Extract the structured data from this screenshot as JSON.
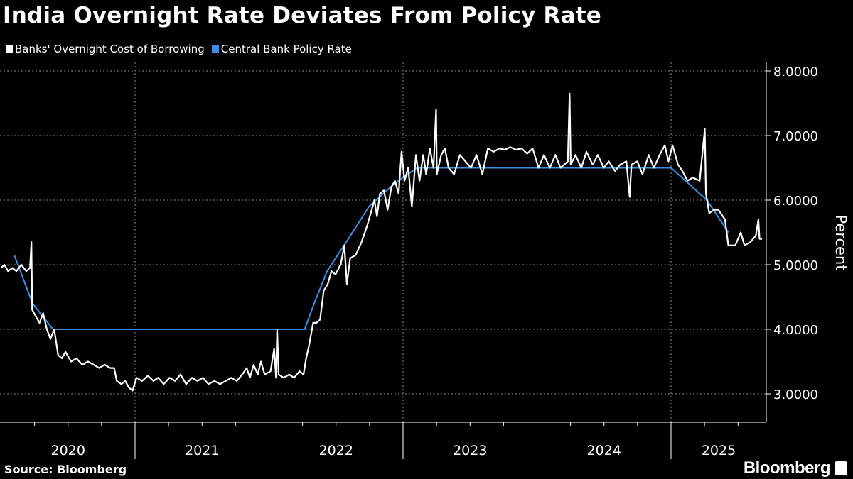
{
  "title": "India Overnight Rate Deviates From Policy Rate",
  "source": "Source: Bloomberg",
  "brand": "Bloomberg",
  "chart_data": {
    "type": "line",
    "title": "India Overnight Rate Deviates From Policy Rate",
    "xlabel": "",
    "ylabel": "Percent",
    "ylim": [
      2.6,
      8.15
    ],
    "xlim": [
      "2020-01-01",
      "2025-09-20"
    ],
    "y_ticks": [
      "3.0000",
      "4.0000",
      "5.0000",
      "6.0000",
      "7.0000",
      "8.0000"
    ],
    "x_tick_labels": [
      "2020",
      "2021",
      "2022",
      "2023",
      "2024",
      "2025"
    ],
    "grid": true,
    "legend_position": "top-left",
    "series": [
      {
        "name": "Banks' Overnight Cost of Borrowing",
        "color": "#ffffff",
        "points": [
          [
            "2020-01-01",
            4.95
          ],
          [
            "2020-01-10",
            5.0
          ],
          [
            "2020-01-20",
            4.9
          ],
          [
            "2020-02-01",
            4.95
          ],
          [
            "2020-02-12",
            4.9
          ],
          [
            "2020-02-25",
            5.0
          ],
          [
            "2020-03-10",
            4.9
          ],
          [
            "2020-03-20",
            4.95
          ],
          [
            "2020-03-24",
            5.35
          ],
          [
            "2020-03-26",
            4.3
          ],
          [
            "2020-04-05",
            4.2
          ],
          [
            "2020-04-15",
            4.1
          ],
          [
            "2020-04-25",
            4.25
          ],
          [
            "2020-05-05",
            4.0
          ],
          [
            "2020-05-15",
            3.85
          ],
          [
            "2020-05-25",
            4.0
          ],
          [
            "2020-06-05",
            3.6
          ],
          [
            "2020-06-15",
            3.55
          ],
          [
            "2020-06-25",
            3.65
          ],
          [
            "2020-07-10",
            3.5
          ],
          [
            "2020-07-25",
            3.55
          ],
          [
            "2020-08-10",
            3.45
          ],
          [
            "2020-08-25",
            3.5
          ],
          [
            "2020-09-10",
            3.45
          ],
          [
            "2020-09-25",
            3.4
          ],
          [
            "2020-10-10",
            3.45
          ],
          [
            "2020-10-25",
            3.4
          ],
          [
            "2020-11-05",
            3.4
          ],
          [
            "2020-11-12",
            3.2
          ],
          [
            "2020-11-25",
            3.15
          ],
          [
            "2020-12-05",
            3.2
          ],
          [
            "2020-12-15",
            3.1
          ],
          [
            "2020-12-25",
            3.05
          ],
          [
            "2021-01-05",
            3.25
          ],
          [
            "2021-01-20",
            3.2
          ],
          [
            "2021-02-05",
            3.28
          ],
          [
            "2021-02-20",
            3.2
          ],
          [
            "2021-03-05",
            3.25
          ],
          [
            "2021-03-20",
            3.15
          ],
          [
            "2021-04-05",
            3.25
          ],
          [
            "2021-04-20",
            3.2
          ],
          [
            "2021-05-05",
            3.3
          ],
          [
            "2021-05-20",
            3.15
          ],
          [
            "2021-06-05",
            3.25
          ],
          [
            "2021-06-20",
            3.2
          ],
          [
            "2021-07-05",
            3.25
          ],
          [
            "2021-07-20",
            3.15
          ],
          [
            "2021-08-05",
            3.2
          ],
          [
            "2021-08-20",
            3.15
          ],
          [
            "2021-09-05",
            3.2
          ],
          [
            "2021-09-20",
            3.25
          ],
          [
            "2021-10-05",
            3.2
          ],
          [
            "2021-10-20",
            3.3
          ],
          [
            "2021-11-01",
            3.4
          ],
          [
            "2021-11-10",
            3.25
          ],
          [
            "2021-11-20",
            3.45
          ],
          [
            "2021-12-01",
            3.3
          ],
          [
            "2021-12-10",
            3.5
          ],
          [
            "2021-12-20",
            3.3
          ],
          [
            "2022-01-05",
            3.35
          ],
          [
            "2022-01-15",
            3.7
          ],
          [
            "2022-01-20",
            3.25
          ],
          [
            "2022-01-23",
            4.0
          ],
          [
            "2022-01-27",
            3.3
          ],
          [
            "2022-02-10",
            3.25
          ],
          [
            "2022-02-25",
            3.3
          ],
          [
            "2022-03-10",
            3.25
          ],
          [
            "2022-03-25",
            3.35
          ],
          [
            "2022-04-05",
            3.3
          ],
          [
            "2022-04-12",
            3.55
          ],
          [
            "2022-04-20",
            3.75
          ],
          [
            "2022-05-01",
            4.1
          ],
          [
            "2022-05-10",
            4.1
          ],
          [
            "2022-05-20",
            4.15
          ],
          [
            "2022-05-30",
            4.6
          ],
          [
            "2022-06-10",
            4.7
          ],
          [
            "2022-06-20",
            4.9
          ],
          [
            "2022-07-01",
            4.85
          ],
          [
            "2022-07-15",
            5.0
          ],
          [
            "2022-07-25",
            5.3
          ],
          [
            "2022-08-01",
            4.7
          ],
          [
            "2022-08-10",
            5.1
          ],
          [
            "2022-08-25",
            5.15
          ],
          [
            "2022-09-10",
            5.35
          ],
          [
            "2022-09-25",
            5.6
          ],
          [
            "2022-10-05",
            5.8
          ],
          [
            "2022-10-15",
            6.0
          ],
          [
            "2022-10-22",
            5.75
          ],
          [
            "2022-10-30",
            6.1
          ],
          [
            "2022-11-10",
            6.15
          ],
          [
            "2022-11-20",
            5.85
          ],
          [
            "2022-11-30",
            6.2
          ],
          [
            "2022-12-10",
            6.3
          ],
          [
            "2022-12-20",
            6.1
          ],
          [
            "2022-12-28",
            6.75
          ],
          [
            "2023-01-05",
            6.3
          ],
          [
            "2023-01-15",
            6.5
          ],
          [
            "2023-01-25",
            5.9
          ],
          [
            "2023-02-05",
            6.7
          ],
          [
            "2023-02-15",
            6.3
          ],
          [
            "2023-02-25",
            6.7
          ],
          [
            "2023-03-05",
            6.4
          ],
          [
            "2023-03-15",
            6.8
          ],
          [
            "2023-03-25",
            6.5
          ],
          [
            "2023-04-01",
            7.4
          ],
          [
            "2023-04-03",
            6.4
          ],
          [
            "2023-04-15",
            6.7
          ],
          [
            "2023-04-25",
            6.8
          ],
          [
            "2023-05-05",
            6.5
          ],
          [
            "2023-05-20",
            6.4
          ],
          [
            "2023-06-05",
            6.7
          ],
          [
            "2023-06-20",
            6.6
          ],
          [
            "2023-07-05",
            6.5
          ],
          [
            "2023-07-20",
            6.7
          ],
          [
            "2023-08-05",
            6.4
          ],
          [
            "2023-08-20",
            6.8
          ],
          [
            "2023-09-05",
            6.75
          ],
          [
            "2023-09-20",
            6.8
          ],
          [
            "2023-10-05",
            6.78
          ],
          [
            "2023-10-20",
            6.82
          ],
          [
            "2023-11-05",
            6.78
          ],
          [
            "2023-11-20",
            6.8
          ],
          [
            "2023-12-05",
            6.72
          ],
          [
            "2023-12-20",
            6.8
          ],
          [
            "2024-01-05",
            6.5
          ],
          [
            "2024-01-20",
            6.7
          ],
          [
            "2024-02-05",
            6.5
          ],
          [
            "2024-02-20",
            6.7
          ],
          [
            "2024-03-05",
            6.5
          ],
          [
            "2024-03-25",
            6.6
          ],
          [
            "2024-03-30",
            7.65
          ],
          [
            "2024-04-02",
            6.55
          ],
          [
            "2024-04-15",
            6.7
          ],
          [
            "2024-05-01",
            6.5
          ],
          [
            "2024-05-15",
            6.75
          ],
          [
            "2024-06-01",
            6.55
          ],
          [
            "2024-06-15",
            6.7
          ],
          [
            "2024-07-01",
            6.5
          ],
          [
            "2024-07-15",
            6.6
          ],
          [
            "2024-08-01",
            6.45
          ],
          [
            "2024-08-15",
            6.55
          ],
          [
            "2024-09-01",
            6.6
          ],
          [
            "2024-09-10",
            6.05
          ],
          [
            "2024-09-15",
            6.55
          ],
          [
            "2024-10-01",
            6.6
          ],
          [
            "2024-10-15",
            6.4
          ],
          [
            "2024-11-01",
            6.7
          ],
          [
            "2024-11-15",
            6.5
          ],
          [
            "2024-12-01",
            6.7
          ],
          [
            "2024-12-15",
            6.85
          ],
          [
            "2024-12-25",
            6.6
          ],
          [
            "2025-01-05",
            6.85
          ],
          [
            "2025-01-20",
            6.55
          ],
          [
            "2025-02-01",
            6.45
          ],
          [
            "2025-02-15",
            6.3
          ],
          [
            "2025-03-01",
            6.35
          ],
          [
            "2025-03-20",
            6.3
          ],
          [
            "2025-04-03",
            7.1
          ],
          [
            "2025-04-06",
            6.1
          ],
          [
            "2025-04-15",
            5.8
          ],
          [
            "2025-04-28",
            5.85
          ],
          [
            "2025-05-10",
            5.85
          ],
          [
            "2025-05-28",
            5.7
          ],
          [
            "2025-06-06",
            5.3
          ],
          [
            "2025-06-25",
            5.3
          ],
          [
            "2025-07-10",
            5.5
          ],
          [
            "2025-07-20",
            5.3
          ],
          [
            "2025-08-05",
            5.35
          ],
          [
            "2025-08-20",
            5.45
          ],
          [
            "2025-08-27",
            5.7
          ],
          [
            "2025-08-30",
            5.4
          ],
          [
            "2025-09-06",
            5.4
          ]
        ]
      },
      {
        "name": "Central Bank Policy Rate",
        "color": "#3d8ee6",
        "points": [
          [
            "2020-02-06",
            5.15
          ],
          [
            "2020-03-27",
            4.4
          ],
          [
            "2020-05-22",
            4.0
          ],
          [
            "2022-04-08",
            4.0
          ],
          [
            "2022-05-04",
            4.4
          ],
          [
            "2022-06-08",
            4.9
          ],
          [
            "2022-08-05",
            5.4
          ],
          [
            "2022-09-30",
            5.9
          ],
          [
            "2022-12-07",
            6.25
          ],
          [
            "2023-02-08",
            6.5
          ],
          [
            "2025-01-01",
            6.5
          ],
          [
            "2025-04-09",
            6.0
          ],
          [
            "2025-06-06",
            5.5
          ]
        ]
      }
    ]
  }
}
